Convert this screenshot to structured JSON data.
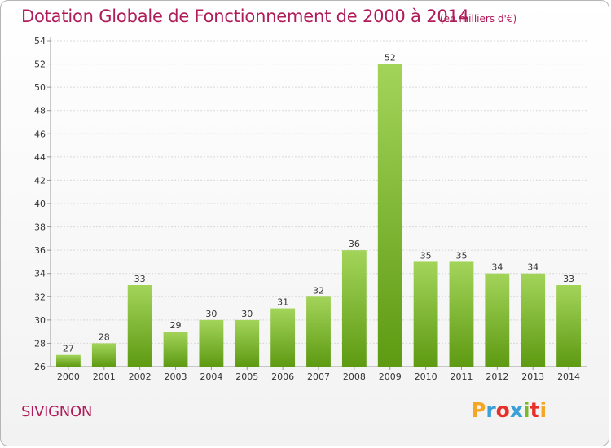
{
  "header": {
    "title": "Dotation Globale de Fonctionnement de 2000 à 2014",
    "unit": "(en milliers d'€)"
  },
  "footer": {
    "commune": "SIVIGNON",
    "brand": "Proxiti",
    "brand_colors": [
      "#f5a623",
      "#3aa0d8",
      "#e8302a",
      "#3aa0d8",
      "#7ab929",
      "#e8302a",
      "#f5a623"
    ]
  },
  "colors": {
    "bar_top": "#a3d45a",
    "bar_bottom": "#5e9a12",
    "accent": "#b01c5a"
  },
  "chart_data": {
    "type": "bar",
    "categories": [
      "2000",
      "2001",
      "2002",
      "2003",
      "2004",
      "2005",
      "2006",
      "2007",
      "2008",
      "2009",
      "2010",
      "2011",
      "2012",
      "2013",
      "2014"
    ],
    "values": [
      27,
      28,
      33,
      29,
      30,
      30,
      31,
      32,
      36,
      52,
      35,
      35,
      34,
      34,
      33
    ],
    "title": "Dotation Globale de Fonctionnement de 2000 à 2014",
    "ylim": [
      26,
      54
    ],
    "yticks": [
      26,
      28,
      30,
      32,
      34,
      36,
      38,
      40,
      42,
      44,
      46,
      48,
      50,
      52,
      54
    ],
    "grid": true,
    "data_labels": true
  }
}
